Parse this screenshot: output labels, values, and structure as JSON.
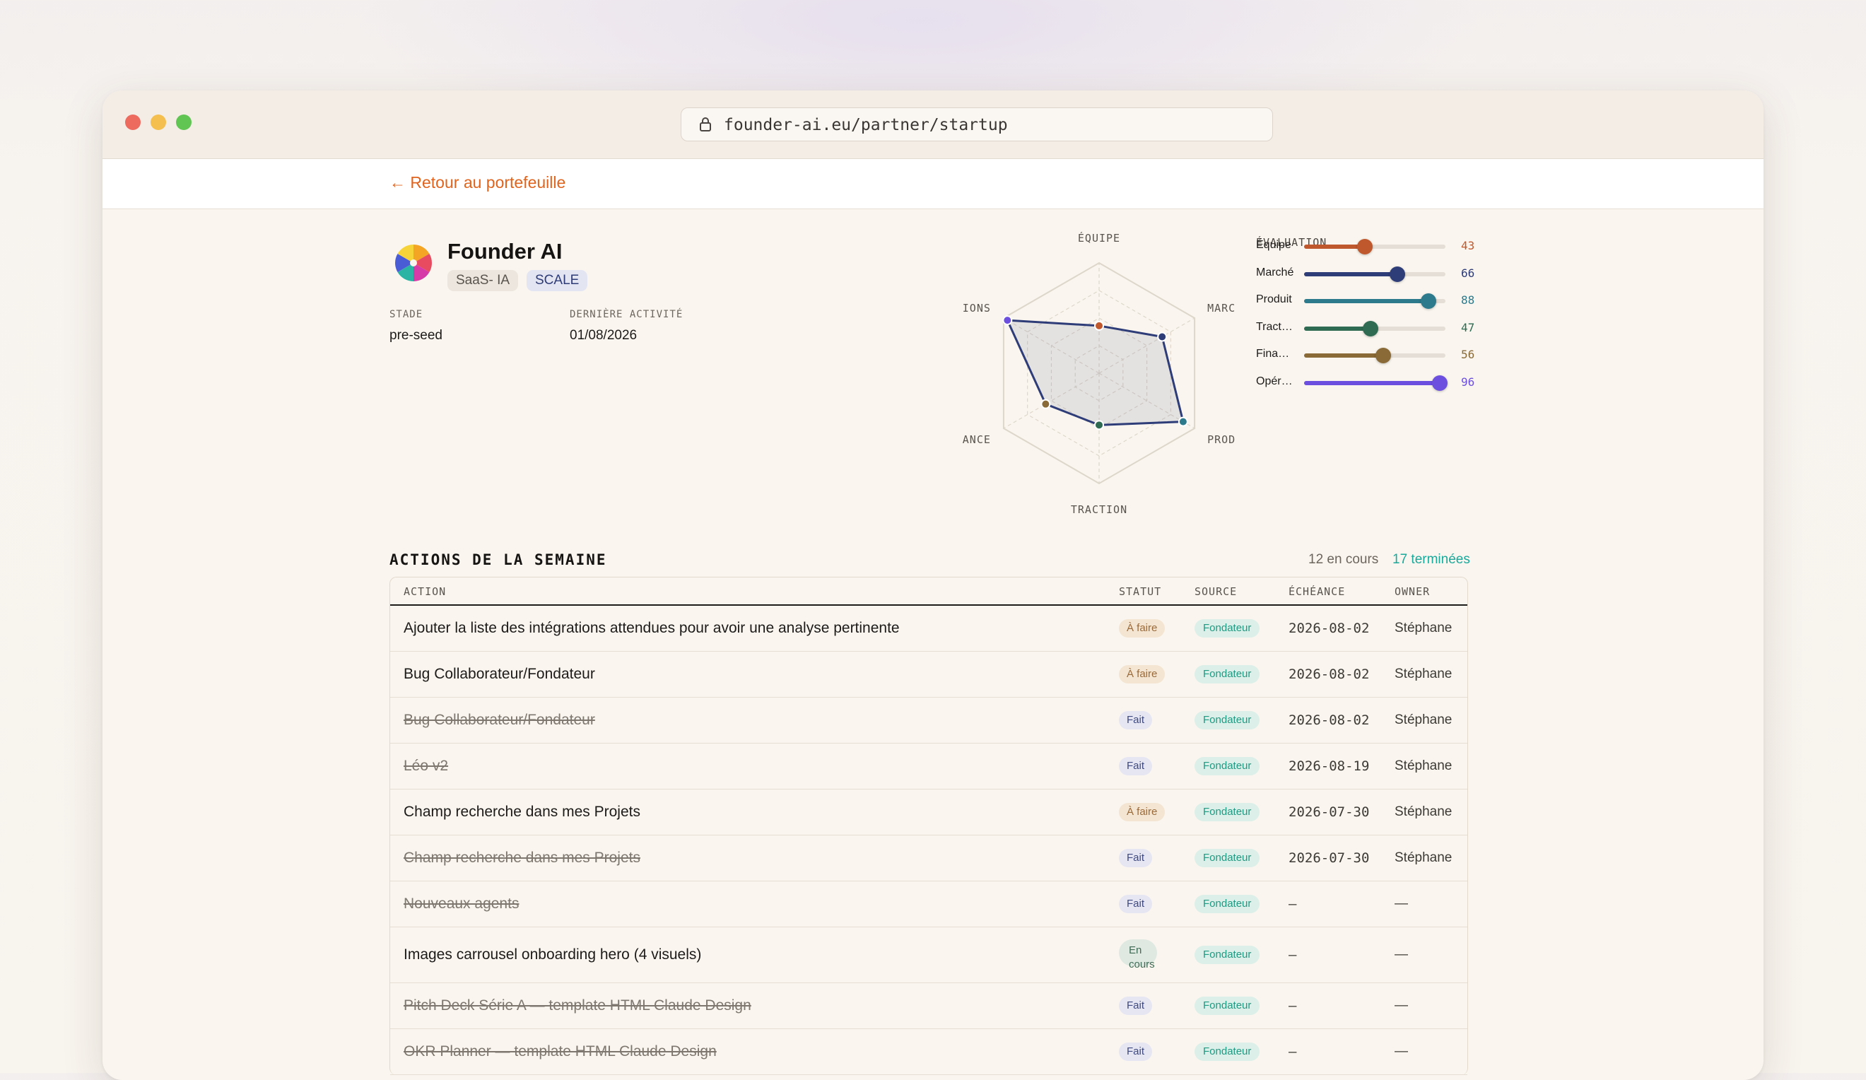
{
  "browser": {
    "url": "founder-ai.eu/partner/startup"
  },
  "nav": {
    "back_label": "← Retour au portefeuille"
  },
  "startup": {
    "name": "Founder AI",
    "tags": [
      "SaaS- IA",
      "SCALE"
    ],
    "stage_label": "STADE",
    "stage_value": "pre-seed",
    "activity_label": "DERNIÈRE ACTIVITÉ",
    "activity_value": "01/08/2026"
  },
  "radar": {
    "axes": [
      "ÉQUIPE",
      "MARC",
      "PROD",
      "TRACTION",
      "ANCE",
      "IONS"
    ],
    "values": [
      43,
      66,
      88,
      47,
      56,
      96
    ],
    "max": 100,
    "colors": [
      "#c0582e",
      "#2e3c78",
      "#2d7a8c",
      "#2f6b52",
      "#8a6a36",
      "#6d4fe0"
    ]
  },
  "evaluation": {
    "title": "ÉVALUATION",
    "items": [
      {
        "label": "Équipe",
        "value": 43,
        "display": "43",
        "color": "#c0582e"
      },
      {
        "label": "Marché",
        "value": 66,
        "display": "66",
        "color": "#2e3c78"
      },
      {
        "label": "Produit",
        "value": 88,
        "display": "88",
        "color": "#2d7a8c"
      },
      {
        "label": "Tract…",
        "value": 47,
        "display": "47",
        "color": "#2f6b52"
      },
      {
        "label": "Fina…",
        "value": 56,
        "display": "56",
        "color": "#8a6a36"
      },
      {
        "label": "Opér…",
        "value": 96,
        "display": "96",
        "color": "#6d4fe0"
      }
    ]
  },
  "actions": {
    "title": "ACTIONS DE LA SEMAINE",
    "count_open": "12 en cours",
    "count_done": "17 terminées",
    "headers": {
      "action": "ACTION",
      "status": "STATUT",
      "source": "SOURCE",
      "due": "ÉCHÉANCE",
      "owner": "OWNER"
    },
    "rows": [
      {
        "action": "Ajouter la liste des intégrations attendues pour avoir une analyse pertinente",
        "status": "À faire",
        "state": "todo",
        "source": "Fondateur",
        "due": "2026-08-02",
        "owner": "Stéphane"
      },
      {
        "action": "Bug Collaborateur/Fondateur",
        "status": "À faire",
        "state": "todo",
        "source": "Fondateur",
        "due": "2026-08-02",
        "owner": "Stéphane"
      },
      {
        "action": "Bug Collaborateur/Fondateur",
        "status": "Fait",
        "state": "done",
        "source": "Fondateur",
        "due": "2026-08-02",
        "owner": "Stéphane"
      },
      {
        "action": "Léo v2",
        "status": "Fait",
        "state": "done",
        "source": "Fondateur",
        "due": "2026-08-19",
        "owner": "Stéphane"
      },
      {
        "action": "Champ recherche dans mes Projets",
        "status": "À faire",
        "state": "todo",
        "source": "Fondateur",
        "due": "2026-07-30",
        "owner": "Stéphane"
      },
      {
        "action": "Champ recherche dans mes Projets",
        "status": "Fait",
        "state": "done",
        "source": "Fondateur",
        "due": "2026-07-30",
        "owner": "Stéphane"
      },
      {
        "action": "Nouveaux agents",
        "status": "Fait",
        "state": "done",
        "source": "Fondateur",
        "due": "–",
        "owner": "—"
      },
      {
        "action": "Images carrousel onboarding hero (4 visuels)",
        "status": "En cours",
        "state": "prog",
        "source": "Fondateur",
        "due": "–",
        "owner": "—"
      },
      {
        "action": "Pitch Deck Série A — template HTML Claude Design",
        "status": "Fait",
        "state": "done",
        "source": "Fondateur",
        "due": "–",
        "owner": "—"
      },
      {
        "action": "OKR Planner — template HTML Claude Design",
        "status": "Fait",
        "state": "done",
        "source": "Fondateur",
        "due": "–",
        "owner": "—"
      }
    ]
  }
}
